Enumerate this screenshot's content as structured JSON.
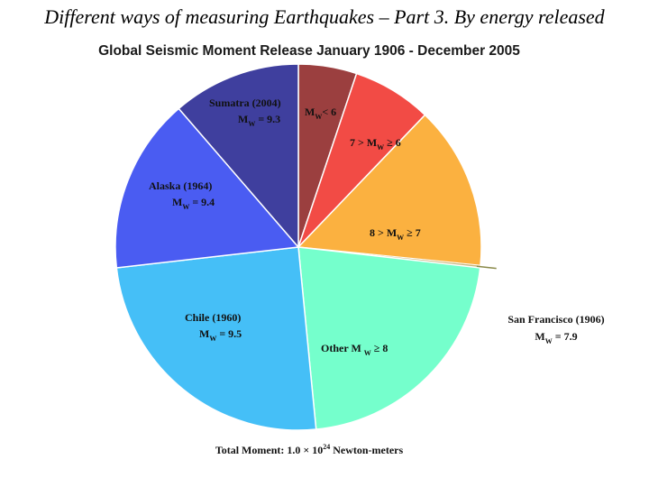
{
  "slide": {
    "title": "Different ways of measuring Earthquakes – Part 3. By energy released"
  },
  "chart_data": {
    "type": "pie",
    "title": "Global Seismic Moment Release January 1906 - December 2005",
    "footnote": {
      "prefix": "Total Moment:  1.0 × 10",
      "exponent": "24",
      "suffix": " Newton-meters"
    },
    "slices": [
      {
        "id": "mw-lt-6",
        "lines": [
          [
            "M",
            "W",
            "< 6"
          ]
        ],
        "value": 5.0,
        "color": "#9b3f3f"
      },
      {
        "id": "mw-6-7",
        "lines": [
          [
            "7 > M",
            "W",
            " ≥ 6"
          ]
        ],
        "value": 6.8,
        "color": "#f24b45"
      },
      {
        "id": "mw-7-8",
        "lines": [
          [
            "8 > M",
            "W",
            " ≥   7"
          ]
        ],
        "value": 14.0,
        "color": "#fbb140"
      },
      {
        "id": "san-francisco",
        "lines": [
          [
            "San Francisco (1906)"
          ],
          [
            "M",
            "W",
            " = 7.9"
          ]
        ],
        "value": 0.2,
        "color": "#c9b77d",
        "outside": true
      },
      {
        "id": "other",
        "lines": [
          [
            "Other M ",
            "W",
            " ≥ 8"
          ]
        ],
        "value": 21.0,
        "color": "#75ffcc"
      },
      {
        "id": "chile",
        "lines": [
          [
            "Chile (1960)"
          ],
          [
            "M",
            "W",
            " = 9.5"
          ]
        ],
        "value": 24.0,
        "color": "#45bff7"
      },
      {
        "id": "alaska",
        "lines": [
          [
            "Alaska (1964)"
          ],
          [
            "M",
            "W",
            " = 9.4"
          ]
        ],
        "value": 15.0,
        "color": "#4a5cf2"
      },
      {
        "id": "sumatra",
        "lines": [
          [
            "Sumatra (2004)"
          ],
          [
            "M",
            "W",
            " = 9.3"
          ]
        ],
        "value": 11.0,
        "color": "#3f3f9e"
      }
    ]
  }
}
